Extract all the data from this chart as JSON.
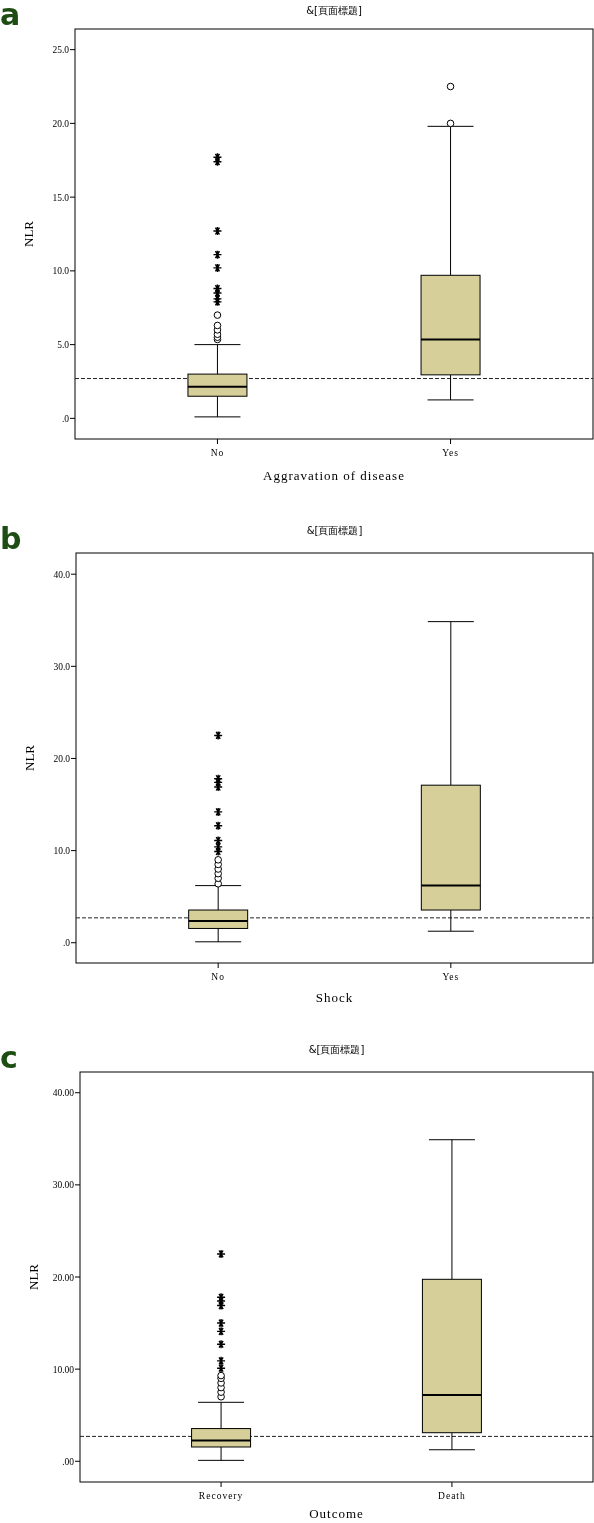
{
  "chart_data": [
    {
      "type": "box",
      "title": "&[頁面標題]",
      "annotations": [
        "a"
      ],
      "xlabel": "Aggravation of disease",
      "ylabel": "NLR",
      "categories": [
        "No",
        "Yes"
      ],
      "color": "#d6cf9a",
      "boxes": [
        {
          "low": 0.1,
          "q1": 1.5,
          "median": 2.15,
          "q3": 3.0,
          "high": 5.0,
          "outliers": [
            5.35,
            5.5,
            5.7,
            6.0,
            6.3,
            7.0,
            7.9,
            8.1,
            8.5,
            8.8,
            10.2,
            11.1,
            12.7,
            17.4,
            17.7
          ]
        },
        {
          "low": 1.25,
          "q1": 2.95,
          "median": 5.35,
          "q3": 9.7,
          "high": 19.8,
          "outliers": [
            20.0,
            22.5
          ]
        }
      ],
      "ylim": [
        -1.4,
        26.4
      ],
      "yticks": [
        {
          "value": 0,
          "label": ".0"
        },
        {
          "value": 5,
          "label": "5.0"
        },
        {
          "value": 10,
          "label": "10.0"
        },
        {
          "value": 15,
          "label": "15.0"
        },
        {
          "value": 20,
          "label": "20.0"
        },
        {
          "value": 25,
          "label": "25.0"
        }
      ],
      "ref_lines": [
        {
          "axis": "y",
          "value": 2.7,
          "color": "#222222",
          "line_style": "dashed"
        }
      ]
    },
    {
      "type": "box",
      "title": "&[頁面標題]",
      "annotations": [
        "b"
      ],
      "xlabel": "Shock",
      "ylabel": "NLR",
      "categories": [
        "No",
        "Yes"
      ],
      "color": "#d6cf9a",
      "boxes": [
        {
          "low": 0.1,
          "q1": 1.55,
          "median": 2.35,
          "q3": 3.55,
          "high": 6.2,
          "outliers": [
            6.4,
            7.0,
            7.5,
            8.0,
            8.5,
            9.0,
            9.9,
            10.4,
            11.1,
            12.7,
            14.2,
            16.9,
            17.4,
            17.8,
            22.5
          ]
        },
        {
          "low": 1.25,
          "q1": 3.55,
          "median": 6.2,
          "q3": 17.1,
          "high": 34.85
        }
      ],
      "ylim": [
        -2.2,
        42.3
      ],
      "yticks": [
        {
          "value": 0,
          "label": ".0"
        },
        {
          "value": 10,
          "label": "10.0"
        },
        {
          "value": 20,
          "label": "20.0"
        },
        {
          "value": 30,
          "label": "30.0"
        },
        {
          "value": 40,
          "label": "40.0"
        }
      ],
      "ref_lines": [
        {
          "axis": "y",
          "value": 2.7,
          "color": "#222222",
          "line_style": "dashed"
        }
      ]
    },
    {
      "type": "box",
      "title": "&[頁面標題]",
      "annotations": [
        "c"
      ],
      "xlabel": "Outcome",
      "ylabel": "NLR",
      "categories": [
        "Recovery",
        "Death"
      ],
      "color": "#d6cf9a",
      "boxes": [
        {
          "low": 0.1,
          "q1": 1.55,
          "median": 2.25,
          "q3": 3.55,
          "high": 6.4,
          "outliers": [
            7.0,
            7.5,
            8.0,
            8.5,
            9.0,
            9.3,
            10.1,
            10.9,
            12.7,
            14.1,
            15.0,
            16.9,
            17.4,
            17.8,
            22.5
          ]
        },
        {
          "low": 1.25,
          "q1": 3.1,
          "median": 7.2,
          "q3": 19.75,
          "high": 34.9
        }
      ],
      "ylim": [
        -2.25,
        42.25
      ],
      "yticks": [
        {
          "value": 0,
          "label": ".00"
        },
        {
          "value": 10,
          "label": "10.00"
        },
        {
          "value": 20,
          "label": "20.00"
        },
        {
          "value": 30,
          "label": "30.00"
        },
        {
          "value": 40,
          "label": "40.00"
        }
      ],
      "ref_lines": [
        {
          "axis": "y",
          "value": 2.7,
          "color": "#222222",
          "line_style": "dashed"
        }
      ]
    }
  ]
}
